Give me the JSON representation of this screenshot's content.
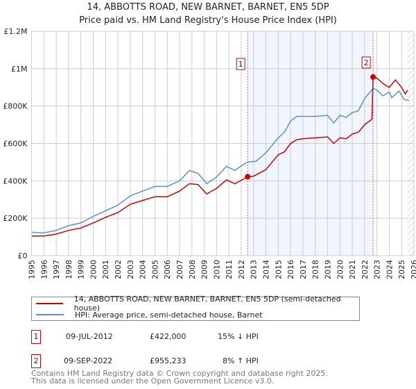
{
  "header": {
    "title": "14, ABBOTTS ROAD, NEW BARNET, BARNET, EN5 5DP",
    "subtitle": "Price paid vs. HM Land Registry's House Price Index (HPI)"
  },
  "chart_data": {
    "type": "line",
    "title": "14, ABBOTTS ROAD, NEW BARNET, BARNET, EN5 5DP",
    "subtitle": "Price paid vs. HM Land Registry's House Price Index (HPI)",
    "xlim": [
      1995,
      2026
    ],
    "ylim": [
      0,
      1200000
    ],
    "x_ticks": [
      "1995",
      "1996",
      "1997",
      "1998",
      "1999",
      "2000",
      "2001",
      "2002",
      "2003",
      "2004",
      "2005",
      "2006",
      "2007",
      "2008",
      "2009",
      "2010",
      "2011",
      "2012",
      "2013",
      "2014",
      "2015",
      "2016",
      "2017",
      "2018",
      "2019",
      "2020",
      "2021",
      "2022",
      "2023",
      "2024",
      "2025",
      "2026"
    ],
    "y_ticks": [
      {
        "v": 0,
        "label": "£0"
      },
      {
        "v": 200000,
        "label": "£200K"
      },
      {
        "v": 400000,
        "label": "£400K"
      },
      {
        "v": 600000,
        "label": "£600K"
      },
      {
        "v": 800000,
        "label": "£800K"
      },
      {
        "v": 1000000,
        "label": "£1M"
      },
      {
        "v": 1200000,
        "label": "£1.2M"
      }
    ],
    "grid": true,
    "shaded_range": [
      2012.52,
      2022.69
    ],
    "hatched_after": 2025.5,
    "series": [
      {
        "name": "14, ABBOTTS ROAD, NEW BARNET, BARNET, EN5 5DP (semi-detached house)",
        "color": "#cc0000",
        "x": [
          1995,
          1996,
          1997,
          1998,
          1999,
          2000,
          2001,
          2002,
          2003,
          2004,
          2005,
          2006,
          2007,
          2007.8,
          2008.5,
          2009.2,
          2010,
          2010.8,
          2011.5,
          2012.52,
          2013,
          2014,
          2015,
          2015.5,
          2016,
          2016.5,
          2017,
          2018,
          2019,
          2019.5,
          2020,
          2020.5,
          2021,
          2021.5,
          2022,
          2022.6,
          2022.69,
          2023,
          2023.5,
          2024,
          2024.5,
          2025,
          2025.3,
          2025.5
        ],
        "y": [
          105000,
          105000,
          115000,
          135000,
          148000,
          175000,
          205000,
          230000,
          275000,
          295000,
          315000,
          315000,
          345000,
          385000,
          380000,
          330000,
          360000,
          405000,
          385000,
          422000,
          425000,
          460000,
          540000,
          555000,
          600000,
          620000,
          625000,
          630000,
          635000,
          600000,
          630000,
          625000,
          650000,
          660000,
          700000,
          730000,
          955233,
          950000,
          920000,
          900000,
          940000,
          900000,
          865000,
          885000
        ]
      },
      {
        "name": "HPI: Average price, semi-detached house, Barnet",
        "color": "#5b8fd4",
        "x": [
          1995,
          1996,
          1997,
          1998,
          1999,
          2000,
          2001,
          2002,
          2003,
          2004,
          2005,
          2006,
          2007,
          2007.8,
          2008.5,
          2009.2,
          2010,
          2010.8,
          2011.5,
          2012,
          2012.52,
          2013.2,
          2014,
          2015,
          2015.5,
          2016,
          2016.5,
          2017,
          2018,
          2019,
          2019.5,
          2020,
          2020.5,
          2021,
          2021.5,
          2022,
          2022.7,
          2023,
          2023.5,
          2024,
          2024.2,
          2024.8,
          2025.2,
          2025.6
        ],
        "y": [
          125000,
          122000,
          135000,
          160000,
          175000,
          210000,
          240000,
          270000,
          320000,
          345000,
          370000,
          370000,
          400000,
          455000,
          440000,
          385000,
          420000,
          478000,
          455000,
          480000,
          500000,
          505000,
          550000,
          630000,
          660000,
          720000,
          745000,
          745000,
          745000,
          750000,
          710000,
          750000,
          740000,
          765000,
          775000,
          840000,
          895000,
          885000,
          855000,
          875000,
          845000,
          880000,
          835000,
          830000
        ]
      }
    ],
    "markers": [
      {
        "label": "1",
        "x": 2012.52,
        "y": 422000
      },
      {
        "label": "2",
        "x": 2022.69,
        "y": 955233
      }
    ]
  },
  "legend": {
    "items": [
      {
        "label": "14, ABBOTTS ROAD, NEW BARNET, BARNET, EN5 5DP (semi-detached house)",
        "color": "#cc0000"
      },
      {
        "label": "HPI: Average price, semi-detached house, Barnet",
        "color": "#5b8fd4"
      }
    ]
  },
  "transactions": [
    {
      "num": "1",
      "date": "09-JUL-2012",
      "price": "£422,000",
      "hpi": "15% ↓ HPI"
    },
    {
      "num": "2",
      "date": "09-SEP-2022",
      "price": "£955,233",
      "hpi": "8% ↑ HPI"
    }
  ],
  "footer": {
    "line1": "Contains HM Land Registry data © Crown copyright and database right 2025.",
    "line2": "This data is licensed under the Open Government Licence v3.0."
  }
}
